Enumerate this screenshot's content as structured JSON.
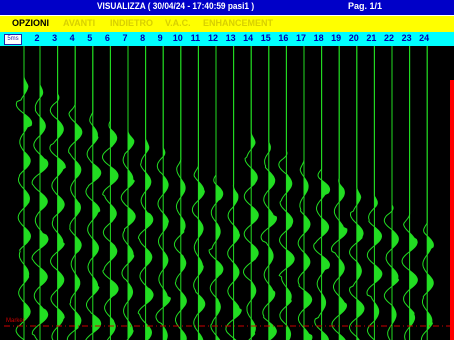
{
  "titlebar": {
    "title": "VISUALIZZA ( 30/04/24 - 17:40:59  pasi1 )",
    "page": "Pag. 1/1"
  },
  "menu": [
    {
      "label": "OPZIONI",
      "enabled": true
    },
    {
      "label": "AVANTI",
      "enabled": false
    },
    {
      "label": "INDIETRO",
      "enabled": false
    },
    {
      "label": "V.A.C.",
      "enabled": false
    },
    {
      "label": "ENHANCEMENT",
      "enabled": false
    }
  ],
  "scale_button": {
    "label": "5ms"
  },
  "channels": [
    "2",
    "3",
    "4",
    "5",
    "6",
    "7",
    "8",
    "9",
    "10",
    "11",
    "12",
    "13",
    "14",
    "15",
    "16",
    "17",
    "18",
    "19",
    "20",
    "21",
    "22",
    "23",
    "24"
  ],
  "marker_label": "Marker",
  "colors": {
    "trace": "#22dd22",
    "title_bg": "#0000c8",
    "menu_bg": "#ffff00",
    "scale_bg": "#00ffff",
    "marker": "#cc0000"
  }
}
